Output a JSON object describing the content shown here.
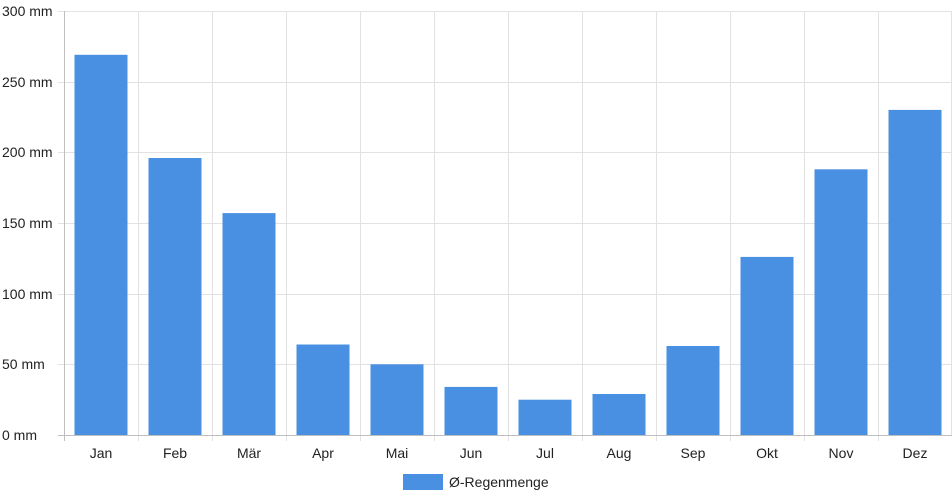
{
  "chart_data": {
    "type": "bar",
    "categories": [
      "Jan",
      "Feb",
      "Mär",
      "Apr",
      "Mai",
      "Jun",
      "Jul",
      "Aug",
      "Sep",
      "Okt",
      "Nov",
      "Dez"
    ],
    "series": [
      {
        "name": "Ø-Regenmenge",
        "values": [
          269,
          196,
          157,
          64,
          50,
          34,
          25,
          29,
          63,
          126,
          188,
          230
        ],
        "color": "#4a90e2"
      }
    ],
    "ylim": [
      0,
      300
    ],
    "yticks": [
      {
        "value": 0,
        "label": "0 mm"
      },
      {
        "value": 50,
        "label": "50 mm"
      },
      {
        "value": 100,
        "label": "100 mm"
      },
      {
        "value": 150,
        "label": "150 mm"
      },
      {
        "value": 200,
        "label": "200 mm"
      },
      {
        "value": 250,
        "label": "250 mm"
      },
      {
        "value": 300,
        "label": "300 mm"
      }
    ],
    "grid": true,
    "legend_position": "bottom-center",
    "grid_color": "#e2e2e2",
    "axis_color": "#bfbfbf"
  }
}
